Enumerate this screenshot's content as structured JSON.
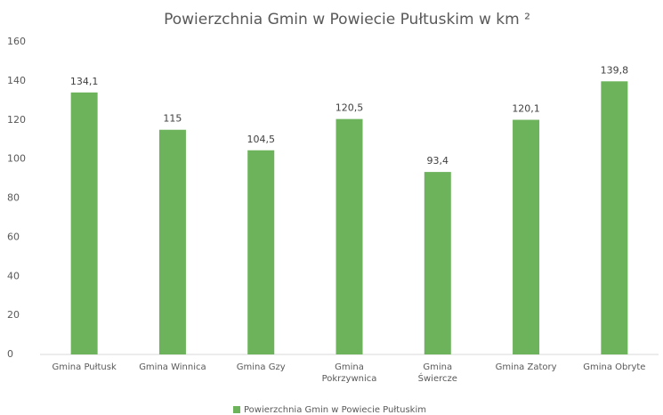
{
  "chart_data": {
    "type": "bar",
    "title": "Powierzchnia Gmin w Powiecie Pułtuskim w km ²",
    "categories": [
      "Gmina Pułtusk",
      "Gmina Winnica",
      "Gmina Gzy",
      "Gmina Pokrzywnica",
      "Gmina Świercze",
      "Gmina Zatory",
      "Gmina Obryte"
    ],
    "series": [
      {
        "name": "Powierzchnia Gmin w Powiecie Pułtuskim",
        "color": "#6cb35c",
        "values": [
          134.1,
          115,
          104.5,
          120.5,
          93.4,
          120.1,
          139.8
        ],
        "value_labels": [
          "134,1",
          "115",
          "104,5",
          "120,5",
          "93,4",
          "120,1",
          "139,8"
        ]
      }
    ],
    "ylim": [
      0,
      160
    ],
    "yticks": [
      0,
      20,
      40,
      60,
      80,
      100,
      120,
      140,
      160
    ],
    "grid": false,
    "legend": "bottom"
  }
}
